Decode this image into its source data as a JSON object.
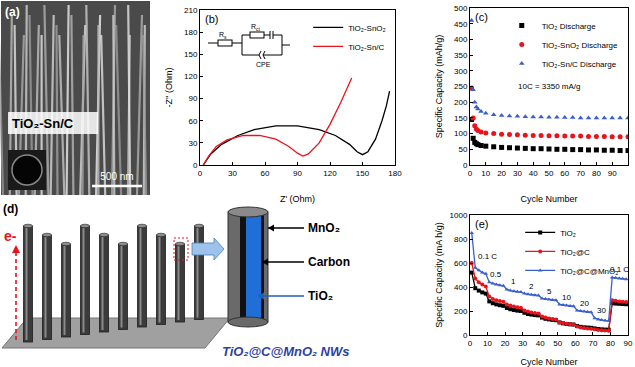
{
  "panel_a": {
    "label": "(a)",
    "sample": "TiO₂-Sn/C",
    "scale_bar": "500 nm"
  },
  "chart_data": [
    {
      "label": "(b)",
      "type": "line",
      "x_label": "Z' (Ohm)",
      "y_label": "-Z'' (Ohm)",
      "xlim": [
        0,
        180
      ],
      "xticks": [
        0,
        30,
        60,
        90,
        120,
        150,
        180
      ],
      "ylim": [
        0,
        210
      ],
      "yticks": [
        0,
        30,
        60,
        90,
        120,
        150,
        180,
        210
      ],
      "grid": false,
      "legend": "upper right",
      "inset_labels": [
        "Rs",
        "Rct",
        "CPE"
      ],
      "series": [
        {
          "name": "TiO₂-SnO₂",
          "color": "#000000",
          "x": [
            3,
            10,
            20,
            35,
            50,
            70,
            90,
            110,
            125,
            138,
            145,
            150,
            155,
            162,
            168,
            172,
            175
          ],
          "values": [
            0,
            15,
            28,
            40,
            48,
            53,
            53,
            48,
            40,
            28,
            18,
            14,
            18,
            35,
            60,
            80,
            100
          ]
        },
        {
          "name": "TiO₂-Sn/C",
          "color": "#e8141c",
          "x": [
            3,
            8,
            15,
            25,
            40,
            55,
            70,
            82,
            90,
            95,
            100,
            110,
            120,
            130,
            140
          ],
          "values": [
            0,
            12,
            25,
            34,
            40,
            40,
            35,
            25,
            16,
            12,
            15,
            30,
            55,
            85,
            118
          ]
        }
      ]
    },
    {
      "label": "(c)",
      "type": "scatter",
      "x_label": "Cycle Number",
      "y_label": "Specific Capacity (mAh/g)",
      "xlim": [
        0,
        100
      ],
      "xticks": [
        0,
        10,
        20,
        30,
        40,
        50,
        60,
        70,
        80,
        90,
        100
      ],
      "ylim": [
        0,
        500
      ],
      "yticks": [
        0,
        50,
        100,
        150,
        200,
        250,
        300,
        350,
        400,
        450,
        500
      ],
      "grid": false,
      "legend": "upper left",
      "annotations": [
        {
          "text": "10C = 3350 mA/g",
          "x": 50,
          "y": 250
        }
      ],
      "x": [
        1,
        2,
        3,
        4,
        5,
        7,
        10,
        15,
        20,
        25,
        30,
        35,
        40,
        45,
        50,
        55,
        60,
        65,
        70,
        75,
        80,
        85,
        90,
        95,
        100
      ],
      "series": [
        {
          "name": "TiO₂ Discharge",
          "color": "#000000",
          "marker": "square",
          "values": [
            145,
            85,
            72,
            68,
            65,
            62,
            60,
            58,
            56,
            55,
            54,
            53,
            52,
            52,
            51,
            50,
            50,
            49,
            49,
            48,
            48,
            47,
            47,
            46,
            46
          ]
        },
        {
          "name": "TiO₂-SnO₂ Discharge",
          "color": "#e8141c",
          "marker": "circle",
          "values": [
            245,
            150,
            125,
            115,
            110,
            105,
            102,
            100,
            98,
            97,
            96,
            95,
            94,
            94,
            93,
            93,
            92,
            92,
            92,
            91,
            91,
            91,
            90,
            90,
            90
          ]
        },
        {
          "name": "TiO₂-Sn/C Discharge",
          "color": "#3a5fcd",
          "marker": "triangle",
          "values": [
            460,
            240,
            200,
            185,
            178,
            170,
            165,
            160,
            158,
            156,
            155,
            154,
            153,
            153,
            152,
            152,
            151,
            151,
            150,
            150,
            150,
            150,
            150,
            150,
            150
          ]
        }
      ]
    },
    {
      "label": "(e)",
      "type": "line",
      "x_label": "Cycle Number",
      "y_label": "Specific Capacity (mA h/g)",
      "xlim": [
        0,
        90
      ],
      "xticks": [
        0,
        10,
        20,
        30,
        40,
        50,
        60,
        70,
        80,
        90
      ],
      "ylim": [
        0,
        1000
      ],
      "yticks": [
        0,
        200,
        400,
        600,
        800,
        1000
      ],
      "grid": false,
      "legend": "upper right",
      "annotations": [
        {
          "text": "0.1 C",
          "x": 10,
          "y": 600
        },
        {
          "text": "0.5",
          "x": 15,
          "y": 450
        },
        {
          "text": "1",
          "x": 25,
          "y": 390
        },
        {
          "text": "2",
          "x": 35,
          "y": 350
        },
        {
          "text": "5",
          "x": 45,
          "y": 310
        },
        {
          "text": "10",
          "x": 55,
          "y": 260
        },
        {
          "text": "20",
          "x": 65,
          "y": 210
        },
        {
          "text": "30",
          "x": 75,
          "y": 150
        },
        {
          "text": "0.1 C",
          "x": 85,
          "y": 490
        }
      ],
      "x": [
        1,
        3,
        5,
        7,
        9,
        11,
        13,
        15,
        17,
        19,
        21,
        23,
        25,
        27,
        29,
        31,
        33,
        35,
        37,
        39,
        41,
        43,
        45,
        47,
        49,
        51,
        53,
        55,
        57,
        59,
        61,
        63,
        65,
        67,
        69,
        71,
        73,
        75,
        77,
        79,
        81,
        83,
        85,
        87,
        89
      ],
      "series": [
        {
          "name": "TiO₂",
          "color": "#000000",
          "marker": "square",
          "values": [
            520,
            390,
            370,
            355,
            345,
            280,
            265,
            255,
            248,
            243,
            225,
            215,
            208,
            203,
            200,
            185,
            175,
            170,
            166,
            163,
            145,
            135,
            130,
            126,
            123,
            105,
            97,
            92,
            89,
            87,
            75,
            68,
            64,
            62,
            60,
            55,
            50,
            47,
            45,
            44,
            265,
            262,
            260,
            258,
            256
          ]
        },
        {
          "name": "TiO₂@C",
          "color": "#e8141c",
          "marker": "circle",
          "values": [
            600,
            470,
            440,
            420,
            405,
            320,
            300,
            290,
            283,
            278,
            255,
            245,
            238,
            232,
            228,
            205,
            195,
            188,
            183,
            180,
            155,
            145,
            138,
            133,
            130,
            105,
            98,
            93,
            90,
            88,
            70,
            62,
            58,
            55,
            53,
            48,
            42,
            40,
            38,
            36,
            290,
            285,
            280,
            278,
            276
          ]
        },
        {
          "name": "TiO₂@C@MnO₂",
          "color": "#3a5fcd",
          "marker": "triangle",
          "values": [
            850,
            560,
            540,
            520,
            510,
            440,
            430,
            420,
            415,
            410,
            380,
            370,
            365,
            360,
            358,
            345,
            340,
            335,
            332,
            330,
            305,
            300,
            295,
            292,
            290,
            255,
            250,
            245,
            242,
            240,
            205,
            200,
            195,
            192,
            190,
            140,
            130,
            125,
            120,
            118,
            480,
            475,
            470,
            468,
            465
          ]
        }
      ]
    }
  ],
  "panel_d": {
    "label": "(d)",
    "electron": "e-",
    "layers": [
      "MnO₂",
      "Carbon",
      "TiO₂"
    ],
    "caption": "TiO₂@C@MnO₂ NWs"
  }
}
